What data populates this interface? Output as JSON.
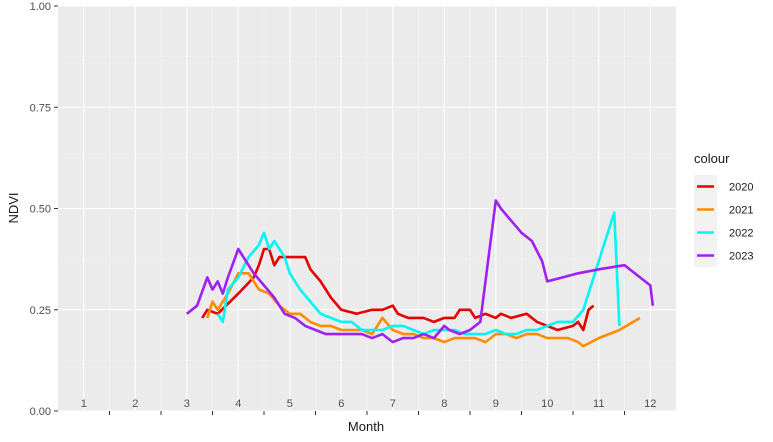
{
  "chart_data": {
    "type": "line",
    "xlabel": "Month",
    "ylabel": "NDVI",
    "ylim": [
      0,
      1
    ],
    "xlim": [
      0.5,
      12.5
    ],
    "y_ticks": [
      0,
      0.25,
      0.5,
      0.75,
      1
    ],
    "y_tick_labels": [
      "0.00",
      "0.25",
      "0.50",
      "0.75",
      "1.00"
    ],
    "x_ticks": [
      1,
      2,
      3,
      4,
      5,
      6,
      7,
      8,
      9,
      10,
      11,
      12
    ],
    "x_tick_labels": [
      "1",
      "2",
      "3",
      "4",
      "5",
      "6",
      "7",
      "8",
      "9",
      "10",
      "11",
      "12"
    ],
    "grid": true,
    "legend_title": "colour",
    "legend_position": "right",
    "series": [
      {
        "name": "2020",
        "color": "#e60000",
        "points": [
          [
            3.3,
            0.23
          ],
          [
            3.4,
            0.25
          ],
          [
            3.6,
            0.24
          ],
          [
            4.0,
            0.29
          ],
          [
            4.3,
            0.33
          ],
          [
            4.4,
            0.36
          ],
          [
            4.5,
            0.4
          ],
          [
            4.6,
            0.4
          ],
          [
            4.7,
            0.36
          ],
          [
            4.8,
            0.38
          ],
          [
            5.0,
            0.38
          ],
          [
            5.3,
            0.38
          ],
          [
            5.4,
            0.35
          ],
          [
            5.6,
            0.32
          ],
          [
            5.8,
            0.28
          ],
          [
            6.0,
            0.25
          ],
          [
            6.3,
            0.24
          ],
          [
            6.6,
            0.25
          ],
          [
            6.8,
            0.25
          ],
          [
            7.0,
            0.26
          ],
          [
            7.1,
            0.24
          ],
          [
            7.3,
            0.23
          ],
          [
            7.6,
            0.23
          ],
          [
            7.8,
            0.22
          ],
          [
            8.0,
            0.23
          ],
          [
            8.2,
            0.23
          ],
          [
            8.3,
            0.25
          ],
          [
            8.5,
            0.25
          ],
          [
            8.6,
            0.23
          ],
          [
            8.8,
            0.24
          ],
          [
            9.0,
            0.23
          ],
          [
            9.1,
            0.24
          ],
          [
            9.3,
            0.23
          ],
          [
            9.6,
            0.24
          ],
          [
            9.8,
            0.22
          ],
          [
            10.0,
            0.21
          ],
          [
            10.2,
            0.2
          ],
          [
            10.5,
            0.21
          ],
          [
            10.6,
            0.22
          ],
          [
            10.7,
            0.2
          ],
          [
            10.8,
            0.25
          ],
          [
            10.9,
            0.26
          ]
        ]
      },
      {
        "name": "2021",
        "color": "#ff8c00",
        "points": [
          [
            3.4,
            0.23
          ],
          [
            3.5,
            0.27
          ],
          [
            3.6,
            0.25
          ],
          [
            3.8,
            0.29
          ],
          [
            4.0,
            0.34
          ],
          [
            4.2,
            0.34
          ],
          [
            4.4,
            0.3
          ],
          [
            4.6,
            0.29
          ],
          [
            4.8,
            0.26
          ],
          [
            5.0,
            0.24
          ],
          [
            5.2,
            0.24
          ],
          [
            5.4,
            0.22
          ],
          [
            5.6,
            0.21
          ],
          [
            5.8,
            0.21
          ],
          [
            6.0,
            0.2
          ],
          [
            6.2,
            0.2
          ],
          [
            6.4,
            0.2
          ],
          [
            6.6,
            0.19
          ],
          [
            6.8,
            0.23
          ],
          [
            7.0,
            0.2
          ],
          [
            7.2,
            0.19
          ],
          [
            7.4,
            0.19
          ],
          [
            7.6,
            0.18
          ],
          [
            7.8,
            0.18
          ],
          [
            8.0,
            0.17
          ],
          [
            8.2,
            0.18
          ],
          [
            8.4,
            0.18
          ],
          [
            8.6,
            0.18
          ],
          [
            8.8,
            0.17
          ],
          [
            9.0,
            0.19
          ],
          [
            9.2,
            0.19
          ],
          [
            9.4,
            0.18
          ],
          [
            9.6,
            0.19
          ],
          [
            9.8,
            0.19
          ],
          [
            10.0,
            0.18
          ],
          [
            10.2,
            0.18
          ],
          [
            10.4,
            0.18
          ],
          [
            10.6,
            0.17
          ],
          [
            10.7,
            0.16
          ],
          [
            11.0,
            0.18
          ],
          [
            11.4,
            0.2
          ],
          [
            11.8,
            0.23
          ]
        ]
      },
      {
        "name": "2022",
        "color": "#00f5f5",
        "points": [
          [
            3.6,
            0.24
          ],
          [
            3.7,
            0.22
          ],
          [
            3.8,
            0.3
          ],
          [
            4.0,
            0.33
          ],
          [
            4.2,
            0.38
          ],
          [
            4.4,
            0.41
          ],
          [
            4.5,
            0.44
          ],
          [
            4.6,
            0.4
          ],
          [
            4.7,
            0.42
          ],
          [
            4.9,
            0.38
          ],
          [
            5.0,
            0.34
          ],
          [
            5.2,
            0.3
          ],
          [
            5.4,
            0.27
          ],
          [
            5.6,
            0.24
          ],
          [
            5.8,
            0.23
          ],
          [
            6.0,
            0.22
          ],
          [
            6.2,
            0.22
          ],
          [
            6.4,
            0.2
          ],
          [
            6.6,
            0.2
          ],
          [
            6.8,
            0.2
          ],
          [
            7.0,
            0.21
          ],
          [
            7.2,
            0.21
          ],
          [
            7.4,
            0.2
          ],
          [
            7.6,
            0.19
          ],
          [
            7.8,
            0.2
          ],
          [
            8.0,
            0.2
          ],
          [
            8.2,
            0.2
          ],
          [
            8.4,
            0.19
          ],
          [
            8.6,
            0.19
          ],
          [
            8.8,
            0.19
          ],
          [
            9.0,
            0.2
          ],
          [
            9.2,
            0.19
          ],
          [
            9.4,
            0.19
          ],
          [
            9.6,
            0.2
          ],
          [
            9.8,
            0.2
          ],
          [
            10.0,
            0.21
          ],
          [
            10.2,
            0.22
          ],
          [
            10.5,
            0.22
          ],
          [
            10.7,
            0.25
          ],
          [
            11.0,
            0.37
          ],
          [
            11.3,
            0.49
          ],
          [
            11.4,
            0.21
          ]
        ]
      },
      {
        "name": "2023",
        "color": "#a020f0",
        "points": [
          [
            3.0,
            0.24
          ],
          [
            3.2,
            0.26
          ],
          [
            3.4,
            0.33
          ],
          [
            3.5,
            0.3
          ],
          [
            3.6,
            0.32
          ],
          [
            3.7,
            0.29
          ],
          [
            3.8,
            0.33
          ],
          [
            4.0,
            0.4
          ],
          [
            4.1,
            0.38
          ],
          [
            4.3,
            0.34
          ],
          [
            4.5,
            0.31
          ],
          [
            4.7,
            0.28
          ],
          [
            4.9,
            0.24
          ],
          [
            5.1,
            0.23
          ],
          [
            5.3,
            0.21
          ],
          [
            5.5,
            0.2
          ],
          [
            5.7,
            0.19
          ],
          [
            5.9,
            0.19
          ],
          [
            6.0,
            0.19
          ],
          [
            6.2,
            0.19
          ],
          [
            6.4,
            0.19
          ],
          [
            6.6,
            0.18
          ],
          [
            6.8,
            0.19
          ],
          [
            7.0,
            0.17
          ],
          [
            7.2,
            0.18
          ],
          [
            7.4,
            0.18
          ],
          [
            7.6,
            0.19
          ],
          [
            7.8,
            0.18
          ],
          [
            8.0,
            0.21
          ],
          [
            8.1,
            0.2
          ],
          [
            8.3,
            0.19
          ],
          [
            8.5,
            0.2
          ],
          [
            8.7,
            0.22
          ],
          [
            9.0,
            0.52
          ],
          [
            9.1,
            0.5
          ],
          [
            9.3,
            0.47
          ],
          [
            9.5,
            0.44
          ],
          [
            9.7,
            0.42
          ],
          [
            9.9,
            0.37
          ],
          [
            10.0,
            0.32
          ],
          [
            10.3,
            0.33
          ],
          [
            10.6,
            0.34
          ],
          [
            11.0,
            0.35
          ],
          [
            11.5,
            0.36
          ],
          [
            11.8,
            0.33
          ],
          [
            12.0,
            0.31
          ],
          [
            12.05,
            0.26
          ]
        ]
      }
    ]
  }
}
